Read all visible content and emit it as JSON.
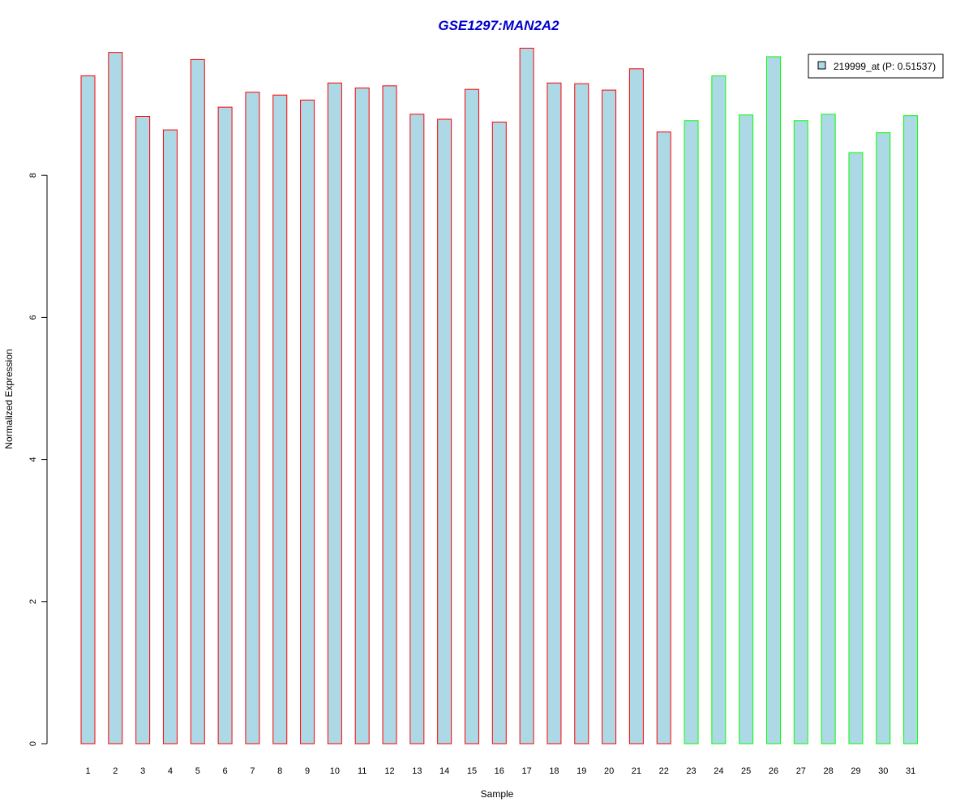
{
  "chart_data": {
    "type": "bar",
    "title": "GSE1297:MAN2A2",
    "xlabel": "Sample",
    "ylabel": "Normalized Expression",
    "ylim": [
      0,
      9.8
    ],
    "yticks": [
      "0",
      "2",
      "4",
      "6",
      "8"
    ],
    "categories": [
      "1",
      "2",
      "3",
      "4",
      "5",
      "6",
      "7",
      "8",
      "9",
      "10",
      "11",
      "12",
      "13",
      "14",
      "15",
      "16",
      "17",
      "18",
      "19",
      "20",
      "21",
      "22",
      "23",
      "24",
      "25",
      "26",
      "27",
      "28",
      "29",
      "30",
      "31"
    ],
    "series": [
      {
        "name": "219999_at (P: 0.51537)",
        "values": [
          9.4,
          9.73,
          8.83,
          8.64,
          9.63,
          8.96,
          9.17,
          9.13,
          9.06,
          9.3,
          9.23,
          9.26,
          8.86,
          8.79,
          9.21,
          8.75,
          9.79,
          9.3,
          9.29,
          9.2,
          9.5,
          8.61,
          8.77,
          9.4,
          8.85,
          9.67,
          8.77,
          8.86,
          8.32,
          8.6,
          8.84
        ]
      }
    ],
    "groups": [
      "red",
      "red",
      "red",
      "red",
      "red",
      "red",
      "red",
      "red",
      "red",
      "red",
      "red",
      "red",
      "red",
      "red",
      "red",
      "red",
      "red",
      "red",
      "red",
      "red",
      "red",
      "red",
      "green",
      "green",
      "green",
      "green",
      "green",
      "green",
      "green",
      "green",
      "green"
    ],
    "grid": false,
    "legend_position": "top-right"
  },
  "colors": {
    "bar_fill": "#add8e6",
    "group_red": "#ff0000",
    "group_green": "#00ff00",
    "title": "#0000cd",
    "axis": "#000000"
  }
}
